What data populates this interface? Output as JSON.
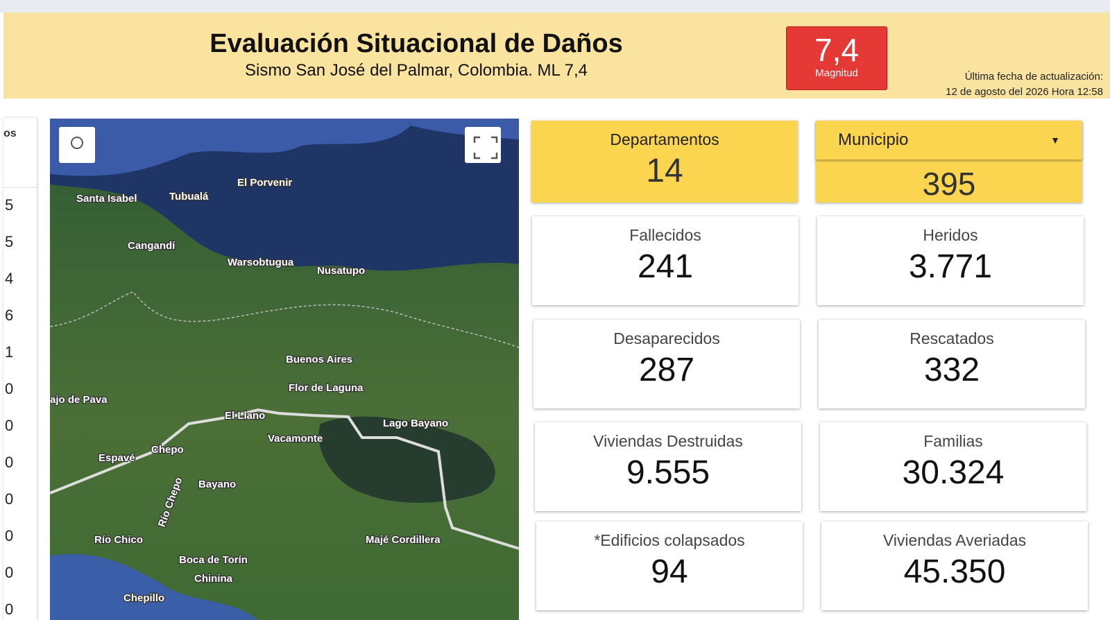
{
  "header": {
    "title": "Evaluación Situacional de Daños",
    "subtitle": "Sismo San José del Palmar, Colombia. ML 7,4",
    "magnitude": {
      "value": "7,4",
      "label": "Magnitud"
    },
    "update_label": "Última fecha de actualización:",
    "update_date": "12 de agosto del 2026 Hora  12:58"
  },
  "side_table": {
    "header": "os",
    "values": [
      "5",
      "5",
      "4",
      "6",
      "1",
      "0",
      "0",
      "0",
      "0",
      "0",
      "0",
      "0"
    ]
  },
  "map": {
    "labels": [
      "Santa Isabel",
      "Tubualá",
      "El Porvenir",
      "Cangandí",
      "Warsobtugua",
      "Nusatupo",
      "Buenos Aires",
      "Flor de Laguna",
      "ajo de Pava",
      "El Llano",
      "Lago Bayano",
      "Vacamonte",
      "Chepo",
      "Espavé",
      "Bayano",
      "Río Chepo",
      "Río Chico",
      "Boca de Torín",
      "Chinina",
      "Chepillo",
      "Majé Cordillera"
    ]
  },
  "summary": {
    "departamentos": {
      "label": "Departamentos",
      "value": "14"
    },
    "municipio": {
      "label": "Municipio",
      "value": "395"
    }
  },
  "stats": [
    {
      "label": "Fallecidos",
      "value": "241"
    },
    {
      "label": "Heridos",
      "value": "3.771"
    },
    {
      "label": "Desaparecidos",
      "value": "287"
    },
    {
      "label": "Rescatados",
      "value": "332"
    },
    {
      "label": "Viviendas Destruidas",
      "value": "9.555"
    },
    {
      "label": "Familias",
      "value": "30.324"
    },
    {
      "label": "*Edificios colapsados",
      "value": "94"
    },
    {
      "label": "Viviendas Averiadas",
      "value": "45.350"
    }
  ]
}
